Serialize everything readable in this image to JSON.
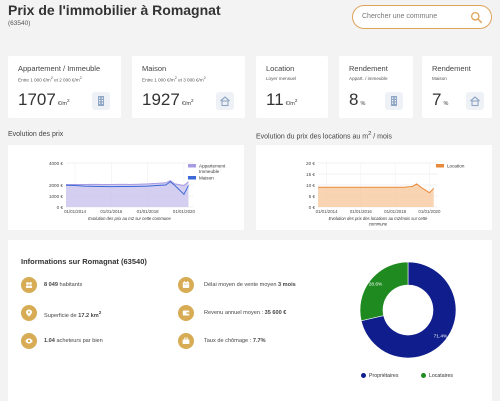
{
  "header": {
    "title": "Prix de l'immobilier à Romagnat",
    "code": "(63540)"
  },
  "search": {
    "placeholder": "Chercher une commune",
    "icon": "search-icon"
  },
  "cards": [
    {
      "title": "Appartement / Immeuble",
      "sub": "Entre 1 000 €/m² et 2 000 €/m²",
      "value": "1707",
      "unit": "€/m²",
      "icon": "building-icon"
    },
    {
      "title": "Maison",
      "sub": "Entre 1 000 €/m² et 3 000 €/m²",
      "value": "1927",
      "unit": "€/m²",
      "icon": "house-icon"
    },
    {
      "title": "Location",
      "sub": "Loyer mensuel",
      "value": "11",
      "unit": "€/m²",
      "icon": ""
    },
    {
      "title": "Rendement",
      "sub": "Appart. / immeuble",
      "value": "8",
      "unit": "%",
      "icon": "building-icon"
    },
    {
      "title": "Rendement",
      "sub": "Maison",
      "value": "7",
      "unit": "%",
      "icon": "house-icon"
    }
  ],
  "colors": {
    "accent": "#e0a25a",
    "gold": "#d7ac55",
    "navy": "#0f1e8c",
    "green": "#1f8a1f",
    "apt_fill": "#c9c2ec",
    "apt_line": "#a79be3",
    "house_line": "#3c6ad8",
    "rent_fill": "#f6c9a0",
    "rent_line": "#e88a3a"
  },
  "chart_data": [
    {
      "type": "area",
      "section_title": "Evolution des prix",
      "caption": "Evolution des prix au m2 sur cette commune",
      "x_ticks": [
        "01/01/2014",
        "01/01/2016",
        "01/01/2018",
        "01/01/2020"
      ],
      "y_ticks": [
        "0 €",
        "1000 €",
        "2000 €",
        "4000 €"
      ],
      "ylim": [
        0,
        4000
      ],
      "x": [
        "2013-07",
        "2014-01",
        "2014-07",
        "2015-01",
        "2015-07",
        "2016-01",
        "2016-07",
        "2017-01",
        "2017-07",
        "2018-01",
        "2018-07",
        "2019-01",
        "2019-04",
        "2019-07",
        "2020-01",
        "2020-04"
      ],
      "series": [
        {
          "name": "Appartement Immeuble",
          "values": [
            2050,
            2050,
            2050,
            2060,
            2050,
            2050,
            2060,
            2050,
            2070,
            2100,
            2150,
            2200,
            2400,
            2100,
            1950,
            2300
          ]
        },
        {
          "name": "Maison",
          "values": [
            1980,
            1960,
            1900,
            1880,
            1860,
            1850,
            1860,
            1860,
            1880,
            1900,
            1950,
            2000,
            2300,
            1950,
            1150,
            1950
          ]
        }
      ]
    },
    {
      "type": "area",
      "section_title": "Evolution du prix des locations au m² / mois",
      "caption": "Evolution des prix des locations au m2/mois sur cette commune",
      "x_ticks": [
        "01/01/2014",
        "01/01/2016",
        "01/01/2018",
        "01/01/2020"
      ],
      "y_ticks": [
        "0 €",
        "5 €",
        "10 €",
        "15 €",
        "20 €"
      ],
      "ylim": [
        0,
        20
      ],
      "x": [
        "2013-07",
        "2014-01",
        "2014-07",
        "2015-01",
        "2015-07",
        "2016-01",
        "2016-07",
        "2017-01",
        "2017-07",
        "2018-01",
        "2018-07",
        "2019-01",
        "2019-04",
        "2019-07",
        "2020-01",
        "2020-04"
      ],
      "series": [
        {
          "name": "Location",
          "values": [
            9,
            9,
            9,
            9,
            9,
            9,
            9,
            9,
            9,
            9,
            9,
            9.3,
            10.5,
            9,
            6.5,
            8.5
          ]
        }
      ]
    },
    {
      "type": "pie",
      "categories": [
        "Propriétaires",
        "Locataires"
      ],
      "values": [
        71.4,
        28.6
      ],
      "labels": [
        "71.4%",
        "28.6%"
      ]
    }
  ],
  "info": {
    "title": "Informations sur Romagnat (63540)",
    "items": [
      {
        "icon": "people-icon",
        "bold": "8 049",
        "text": " habitants"
      },
      {
        "icon": "location-pin-icon",
        "text": "Superficie de ",
        "bold": "17.2 km²"
      },
      {
        "icon": "eye-icon",
        "bold": "1.04",
        "text": " acheteurs par bien"
      },
      {
        "icon": "clock-icon",
        "text": "Délai moyen de vente moyen ",
        "bold": "3 mois"
      },
      {
        "icon": "wallet-icon",
        "text": "Revenu annuel moyen : ",
        "bold": "35 600 €"
      },
      {
        "icon": "briefcase-icon",
        "text": "Taux de chômage : ",
        "bold": "7.7%"
      }
    ]
  }
}
